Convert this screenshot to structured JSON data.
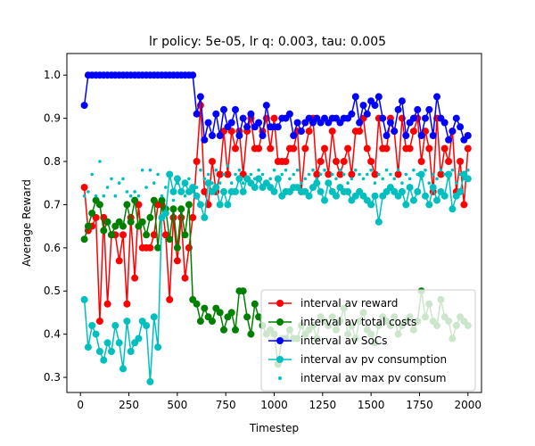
{
  "chart_data": {
    "type": "line",
    "title": "lr policy: 5e-05, lr q: 0.003, tau: 0.005",
    "xlabel": "Timestep",
    "ylabel": "Average Reward",
    "xlim": [
      -70,
      2070
    ],
    "ylim": [
      0.265,
      1.05
    ],
    "xticks": [
      0,
      250,
      500,
      750,
      1000,
      1250,
      1500,
      1750,
      2000
    ],
    "yticks": [
      0.3,
      0.4,
      0.5,
      0.6,
      0.7,
      0.8,
      0.9,
      1.0
    ],
    "ytick_labels": [
      "0.3",
      "0.4",
      "0.5",
      "0.6",
      "0.7",
      "0.8",
      "0.9",
      "1.0"
    ],
    "grid": false,
    "legend_position": "lower right",
    "x": [
      20,
      40,
      60,
      80,
      100,
      120,
      140,
      160,
      180,
      200,
      220,
      240,
      260,
      280,
      300,
      320,
      340,
      360,
      380,
      400,
      420,
      440,
      460,
      480,
      500,
      520,
      540,
      560,
      580,
      600,
      620,
      640,
      660,
      680,
      700,
      720,
      740,
      760,
      780,
      800,
      820,
      840,
      860,
      880,
      900,
      920,
      940,
      960,
      980,
      1000,
      1020,
      1040,
      1060,
      1080,
      1100,
      1120,
      1140,
      1160,
      1180,
      1200,
      1220,
      1240,
      1260,
      1280,
      1300,
      1320,
      1340,
      1360,
      1380,
      1400,
      1420,
      1440,
      1460,
      1480,
      1500,
      1520,
      1540,
      1560,
      1580,
      1600,
      1620,
      1640,
      1660,
      1680,
      1700,
      1720,
      1740,
      1760,
      1780,
      1800,
      1820,
      1840,
      1860,
      1880,
      1900,
      1920,
      1940,
      1960,
      1980,
      2000
    ],
    "series": [
      {
        "name": "interval av reward",
        "color": "#ff0000",
        "style": "line-marker",
        "values": [
          0.74,
          0.64,
          0.65,
          0.67,
          0.43,
          0.67,
          0.47,
          0.63,
          0.63,
          0.57,
          0.63,
          0.47,
          0.67,
          0.53,
          0.7,
          0.6,
          0.6,
          0.6,
          0.63,
          0.7,
          0.7,
          0.63,
          0.48,
          0.67,
          0.57,
          0.67,
          0.53,
          0.6,
          0.67,
          0.8,
          0.93,
          0.73,
          0.7,
          0.8,
          0.73,
          0.77,
          0.87,
          0.77,
          0.87,
          0.83,
          0.87,
          0.77,
          0.87,
          0.9,
          0.83,
          0.83,
          0.87,
          0.9,
          0.83,
          0.9,
          0.8,
          0.8,
          0.8,
          0.83,
          0.83,
          0.87,
          0.73,
          0.83,
          0.87,
          0.9,
          0.77,
          0.8,
          0.83,
          0.77,
          0.87,
          0.8,
          0.77,
          0.8,
          0.83,
          0.77,
          0.87,
          0.87,
          0.9,
          0.83,
          0.8,
          0.77,
          0.9,
          0.83,
          0.83,
          0.9,
          0.87,
          0.77,
          0.9,
          0.83,
          0.83,
          0.87,
          0.9,
          0.8,
          0.87,
          0.83,
          0.73,
          0.9,
          0.77,
          0.83,
          0.8,
          0.87,
          0.73,
          0.8,
          0.7,
          0.83
        ]
      },
      {
        "name": "interval av total costs",
        "color": "#008000",
        "style": "line-marker",
        "values": [
          0.62,
          0.65,
          0.68,
          0.71,
          0.7,
          0.64,
          0.66,
          0.63,
          0.65,
          0.66,
          0.65,
          0.7,
          0.66,
          0.71,
          0.65,
          0.66,
          0.63,
          0.67,
          0.71,
          0.6,
          0.71,
          0.69,
          0.62,
          0.69,
          0.6,
          0.69,
          0.63,
          0.7,
          0.48,
          0.47,
          0.43,
          0.46,
          0.44,
          0.43,
          0.46,
          0.45,
          0.41,
          0.44,
          0.45,
          0.41,
          0.5,
          0.5,
          0.44,
          0.4,
          0.47,
          0.44,
          0.42,
          0.4,
          0.41,
          0.4,
          0.33,
          0.39,
          0.39,
          0.41,
          0.39,
          0.39,
          0.42,
          0.4,
          0.41,
          0.42,
          0.39,
          0.44,
          0.43,
          0.42,
          0.44,
          0.41,
          0.43,
          0.46,
          0.4,
          0.42,
          0.39,
          0.43,
          0.45,
          0.41,
          0.4,
          0.38,
          0.42,
          0.44,
          0.43,
          0.42,
          0.44,
          0.4,
          0.42,
          0.43,
          0.44,
          0.41,
          0.43,
          0.5,
          0.44,
          0.47,
          0.43,
          0.42,
          0.48,
          0.44,
          0.43,
          0.39,
          0.42,
          0.44,
          0.43,
          0.42
        ]
      },
      {
        "name": "interval av SoCs",
        "color": "#0000ff",
        "style": "line-marker",
        "values": [
          0.93,
          1.0,
          1.0,
          1.0,
          1.0,
          1.0,
          1.0,
          1.0,
          1.0,
          1.0,
          1.0,
          1.0,
          1.0,
          1.0,
          1.0,
          1.0,
          1.0,
          1.0,
          1.0,
          1.0,
          1.0,
          1.0,
          1.0,
          1.0,
          1.0,
          1.0,
          1.0,
          1.0,
          1.0,
          0.91,
          0.95,
          0.85,
          0.89,
          0.86,
          0.91,
          0.86,
          0.92,
          0.88,
          0.89,
          0.92,
          0.86,
          0.9,
          0.88,
          0.91,
          0.88,
          0.89,
          0.86,
          0.93,
          0.88,
          0.88,
          0.88,
          0.9,
          0.9,
          0.91,
          0.86,
          0.89,
          0.87,
          0.89,
          0.9,
          0.89,
          0.9,
          0.89,
          0.9,
          0.89,
          0.9,
          0.9,
          0.89,
          0.9,
          0.9,
          0.91,
          0.95,
          0.89,
          0.93,
          0.91,
          0.94,
          0.93,
          0.95,
          0.9,
          0.86,
          0.89,
          0.87,
          0.92,
          0.94,
          0.86,
          0.89,
          0.9,
          0.92,
          0.86,
          0.9,
          0.92,
          0.86,
          0.95,
          0.9,
          0.89,
          0.85,
          0.87,
          0.9,
          0.88,
          0.85,
          0.86
        ]
      },
      {
        "name": "interval av pv consumption",
        "color": "#00bfbf",
        "style": "line-marker",
        "values": [
          0.48,
          0.37,
          0.42,
          0.4,
          0.36,
          0.34,
          0.38,
          0.36,
          0.42,
          0.38,
          0.32,
          0.43,
          0.36,
          0.38,
          0.39,
          0.43,
          0.42,
          0.29,
          0.44,
          0.37,
          0.67,
          0.68,
          0.77,
          0.73,
          0.76,
          0.73,
          0.75,
          0.73,
          0.74,
          0.72,
          0.7,
          0.67,
          0.75,
          0.73,
          0.74,
          0.7,
          0.73,
          0.7,
          0.73,
          0.73,
          0.76,
          0.73,
          0.76,
          0.75,
          0.74,
          0.76,
          0.74,
          0.75,
          0.74,
          0.73,
          0.76,
          0.72,
          0.73,
          0.73,
          0.74,
          0.74,
          0.73,
          0.73,
          0.72,
          0.74,
          0.75,
          0.73,
          0.71,
          0.75,
          0.73,
          0.72,
          0.74,
          0.73,
          0.73,
          0.71,
          0.72,
          0.73,
          0.72,
          0.71,
          0.7,
          0.72,
          0.66,
          0.72,
          0.73,
          0.74,
          0.73,
          0.72,
          0.73,
          0.7,
          0.74,
          0.71,
          0.73,
          0.77,
          0.72,
          0.7,
          0.74,
          0.71,
          0.73,
          0.72,
          0.77,
          0.69,
          0.72,
          0.73,
          0.77,
          0.76
        ]
      },
      {
        "name": "interval av max pv consum",
        "color": "#00bfbf",
        "style": "dots",
        "values": [
          0.72,
          0.73,
          0.77,
          0.72,
          0.8,
          0.72,
          0.74,
          0.76,
          0.72,
          0.75,
          0.76,
          0.73,
          0.72,
          0.73,
          0.72,
          0.78,
          0.74,
          0.78,
          0.75,
          0.77,
          0.72,
          0.74,
          0.77,
          0.71,
          0.75,
          0.73,
          0.72,
          0.76,
          0.73,
          0.74,
          0.78,
          0.76,
          0.77,
          0.75,
          0.78,
          0.75,
          0.77,
          0.79,
          0.75,
          0.77,
          0.78,
          0.75,
          0.76,
          0.77,
          0.76,
          0.78,
          0.77,
          0.75,
          0.76,
          0.78,
          0.76,
          0.77,
          0.78,
          0.76,
          0.77,
          0.78,
          0.75,
          0.76,
          0.77,
          0.78,
          0.76,
          0.77,
          0.78,
          0.75,
          0.77,
          0.76,
          0.78,
          0.77,
          0.75,
          0.76,
          0.78,
          0.77,
          0.76,
          0.77,
          0.78,
          0.75,
          0.77,
          0.76,
          0.78,
          0.77,
          0.76,
          0.78,
          0.75,
          0.77,
          0.76,
          0.78,
          0.77,
          0.76,
          0.78,
          0.75,
          0.77,
          0.76,
          0.78,
          0.77,
          0.76,
          0.78,
          0.75,
          0.77,
          0.76,
          0.78
        ]
      }
    ]
  }
}
